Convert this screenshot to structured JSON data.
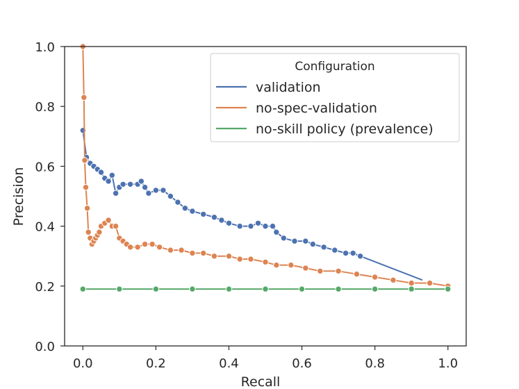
{
  "chart_data": {
    "type": "line",
    "title": "",
    "xlabel": "Recall",
    "ylabel": "Precision",
    "xlim": [
      -0.05,
      1.05
    ],
    "ylim": [
      0.0,
      1.0
    ],
    "x_ticks": [
      0.0,
      0.2,
      0.4,
      0.6,
      0.8,
      1.0
    ],
    "x_tick_labels": [
      "0.0",
      "0.2",
      "0.4",
      "0.6",
      "0.8",
      "1.0"
    ],
    "y_ticks": [
      0.0,
      0.2,
      0.4,
      0.6,
      0.8,
      1.0
    ],
    "y_tick_labels": [
      "0.0",
      "0.2",
      "0.4",
      "0.6",
      "0.8",
      "1.0"
    ],
    "grid": false,
    "legend": {
      "title": "Configuration",
      "position": "top-right",
      "entries": [
        "validation",
        "no-spec-validation",
        "no-skill policy (prevalence)"
      ]
    },
    "series": [
      {
        "name": "validation",
        "color": "#4c72b0",
        "marker": "circle",
        "points": [
          [
            0.0,
            0.72
          ],
          [
            0.01,
            0.63
          ],
          [
            0.02,
            0.61
          ],
          [
            0.03,
            0.6
          ],
          [
            0.04,
            0.59
          ],
          [
            0.05,
            0.58
          ],
          [
            0.06,
            0.56
          ],
          [
            0.07,
            0.55
          ],
          [
            0.08,
            0.57
          ],
          [
            0.09,
            0.51
          ],
          [
            0.1,
            0.53
          ],
          [
            0.11,
            0.54
          ],
          [
            0.13,
            0.54
          ],
          [
            0.15,
            0.54
          ],
          [
            0.16,
            0.55
          ],
          [
            0.17,
            0.53
          ],
          [
            0.18,
            0.51
          ],
          [
            0.2,
            0.52
          ],
          [
            0.22,
            0.52
          ],
          [
            0.24,
            0.5
          ],
          [
            0.26,
            0.48
          ],
          [
            0.28,
            0.46
          ],
          [
            0.3,
            0.45
          ],
          [
            0.33,
            0.44
          ],
          [
            0.36,
            0.43
          ],
          [
            0.38,
            0.42
          ],
          [
            0.4,
            0.41
          ],
          [
            0.43,
            0.4
          ],
          [
            0.46,
            0.4
          ],
          [
            0.48,
            0.41
          ],
          [
            0.5,
            0.4
          ],
          [
            0.52,
            0.4
          ],
          [
            0.53,
            0.38
          ],
          [
            0.55,
            0.36
          ],
          [
            0.58,
            0.35
          ],
          [
            0.61,
            0.35
          ],
          [
            0.63,
            0.34
          ],
          [
            0.66,
            0.33
          ],
          [
            0.69,
            0.32
          ],
          [
            0.72,
            0.31
          ],
          [
            0.74,
            0.31
          ],
          [
            0.76,
            0.3
          ],
          [
            0.93,
            0.22
          ]
        ]
      },
      {
        "name": "no-spec-validation",
        "color": "#dd8452",
        "marker": "circle",
        "points": [
          [
            0.0,
            1.0
          ],
          [
            0.003,
            0.83
          ],
          [
            0.005,
            0.62
          ],
          [
            0.008,
            0.53
          ],
          [
            0.012,
            0.46
          ],
          [
            0.015,
            0.38
          ],
          [
            0.02,
            0.36
          ],
          [
            0.025,
            0.34
          ],
          [
            0.03,
            0.35
          ],
          [
            0.035,
            0.36
          ],
          [
            0.04,
            0.37
          ],
          [
            0.045,
            0.38
          ],
          [
            0.05,
            0.4
          ],
          [
            0.06,
            0.41
          ],
          [
            0.07,
            0.42
          ],
          [
            0.08,
            0.4
          ],
          [
            0.09,
            0.4
          ],
          [
            0.1,
            0.36
          ],
          [
            0.11,
            0.35
          ],
          [
            0.12,
            0.34
          ],
          [
            0.13,
            0.33
          ],
          [
            0.15,
            0.33
          ],
          [
            0.17,
            0.34
          ],
          [
            0.19,
            0.34
          ],
          [
            0.21,
            0.33
          ],
          [
            0.24,
            0.32
          ],
          [
            0.27,
            0.32
          ],
          [
            0.3,
            0.31
          ],
          [
            0.33,
            0.31
          ],
          [
            0.36,
            0.3
          ],
          [
            0.4,
            0.3
          ],
          [
            0.43,
            0.29
          ],
          [
            0.46,
            0.29
          ],
          [
            0.5,
            0.28
          ],
          [
            0.53,
            0.27
          ],
          [
            0.57,
            0.27
          ],
          [
            0.61,
            0.26
          ],
          [
            0.65,
            0.25
          ],
          [
            0.7,
            0.25
          ],
          [
            0.75,
            0.24
          ],
          [
            0.8,
            0.23
          ],
          [
            0.85,
            0.22
          ],
          [
            0.9,
            0.21
          ],
          [
            0.95,
            0.21
          ],
          [
            1.0,
            0.2
          ]
        ]
      },
      {
        "name": "no-skill policy (prevalence)",
        "color": "#55a868",
        "marker": "circle",
        "points": [
          [
            0.0,
            0.19
          ],
          [
            0.1,
            0.19
          ],
          [
            0.2,
            0.19
          ],
          [
            0.3,
            0.19
          ],
          [
            0.4,
            0.19
          ],
          [
            0.5,
            0.19
          ],
          [
            0.6,
            0.19
          ],
          [
            0.7,
            0.19
          ],
          [
            0.8,
            0.19
          ],
          [
            0.9,
            0.19
          ],
          [
            1.0,
            0.19
          ]
        ]
      }
    ]
  }
}
